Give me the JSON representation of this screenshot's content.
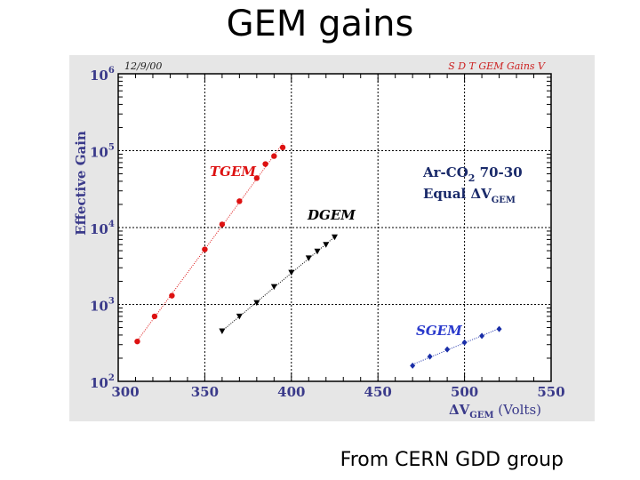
{
  "slide": {
    "title": "GEM gains",
    "caption": "From CERN GDD group"
  },
  "chart_data": {
    "type": "scatter",
    "date_label": "12/9/00",
    "corner_label": "S D T GEM Gains V",
    "ylabel": "Effective Gain",
    "xlabel": {
      "prefix": "ΔV",
      "sub": "GEM",
      "suffix": " (Volts)"
    },
    "xlim": [
      300,
      550
    ],
    "ylim": [
      100,
      1000000
    ],
    "yscale": "log",
    "grid": true,
    "x_ticks": [
      "300",
      "350",
      "400",
      "450",
      "500",
      "550"
    ],
    "y_ticks": [
      {
        "base": "10",
        "exp": "2",
        "value": 100
      },
      {
        "base": "10",
        "exp": "3",
        "value": 1000
      },
      {
        "base": "10",
        "exp": "4",
        "value": 10000
      },
      {
        "base": "10",
        "exp": "5",
        "value": 100000
      },
      {
        "base": "10",
        "exp": "6",
        "value": 1000000
      }
    ],
    "annotation": {
      "line1_main": "Ar-CO",
      "line1_sub": "2",
      "line1_rest": " 70-30",
      "line2_main": "Equal ΔV",
      "line2_sub": "GEM"
    },
    "series": [
      {
        "name": "TGEM",
        "color": "#dd1111",
        "marker": "circle",
        "x": [
          311,
          321,
          331,
          350,
          360,
          370,
          380,
          385,
          390,
          395
        ],
        "y": [
          330,
          700,
          1300,
          5200,
          11000,
          22000,
          44000,
          67000,
          85000,
          110000
        ]
      },
      {
        "name": "DGEM",
        "color": "#000000",
        "marker": "triangle",
        "x": [
          360,
          370,
          380,
          390,
          400,
          410,
          415,
          420,
          425
        ],
        "y": [
          450,
          700,
          1050,
          1700,
          2600,
          4000,
          4900,
          6000,
          7500
        ]
      },
      {
        "name": "SGEM",
        "color": "#1a2ea8",
        "marker": "diamond",
        "x": [
          470,
          480,
          490,
          500,
          510,
          520
        ],
        "y": [
          160,
          210,
          260,
          320,
          390,
          480
        ]
      }
    ]
  }
}
